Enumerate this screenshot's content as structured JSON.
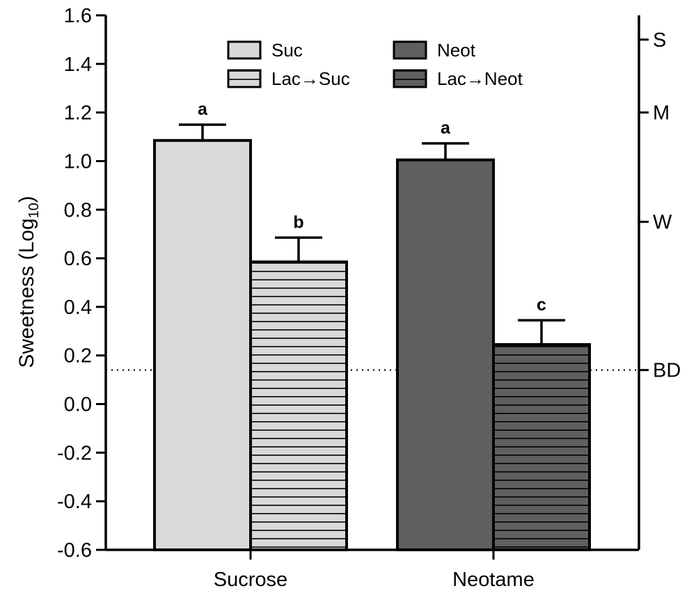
{
  "chart_data": {
    "type": "bar",
    "title": "",
    "xlabel": "",
    "ylabel": "Sweetness (Log10)",
    "ylabel_main": "Sweetness (Log",
    "ylabel_sub": "10",
    "ylabel_close": ")",
    "ylim": [
      -0.6,
      1.6
    ],
    "yticks": [
      "-0.6",
      "-0.4",
      "-0.2",
      "0.0",
      "0.2",
      "0.4",
      "0.6",
      "0.8",
      "1.0",
      "1.2",
      "1.4",
      "1.6"
    ],
    "ytick_values": [
      -0.6,
      -0.4,
      -0.2,
      0.0,
      0.2,
      0.4,
      0.6,
      0.8,
      1.0,
      1.2,
      1.4,
      1.6
    ],
    "categories": [
      "Sucrose",
      "Neotame"
    ],
    "bars": [
      {
        "category": "Sucrose",
        "series": "Suc",
        "value": 1.085,
        "error": 0.065,
        "label": "a",
        "fill": "#d9d9d9",
        "striped": false
      },
      {
        "category": "Sucrose",
        "series": "Lac→Suc",
        "value": 0.585,
        "error": 0.1,
        "label": "b",
        "fill": "#d9d9d9",
        "striped": true
      },
      {
        "category": "Neotame",
        "series": "Neot",
        "value": 1.005,
        "error": 0.068,
        "label": "a",
        "fill": "#5f5f5f",
        "striped": false
      },
      {
        "category": "Neotame",
        "series": "Lac→Neot",
        "value": 0.245,
        "error": 0.1,
        "label": "c",
        "fill": "#5f5f5f",
        "striped": true
      }
    ],
    "legend": [
      {
        "name": "Suc",
        "fill": "#d9d9d9",
        "striped": false
      },
      {
        "name": "Neot",
        "fill": "#5f5f5f",
        "striped": false
      },
      {
        "name": "Lac→Suc",
        "fill": "#d9d9d9",
        "striped": true
      },
      {
        "name": "Lac→Neot",
        "fill": "#5f5f5f",
        "striped": true
      }
    ],
    "legend_position": "top-center",
    "right_axis": {
      "labels": [
        {
          "label": "S",
          "value": 1.5
        },
        {
          "label": "M",
          "value": 1.2
        },
        {
          "label": "W",
          "value": 0.75
        },
        {
          "label": "BD",
          "value": 0.14
        }
      ]
    },
    "reference_line": {
      "value": 0.14,
      "style": "dotted",
      "label": "BD"
    },
    "grid": false
  }
}
